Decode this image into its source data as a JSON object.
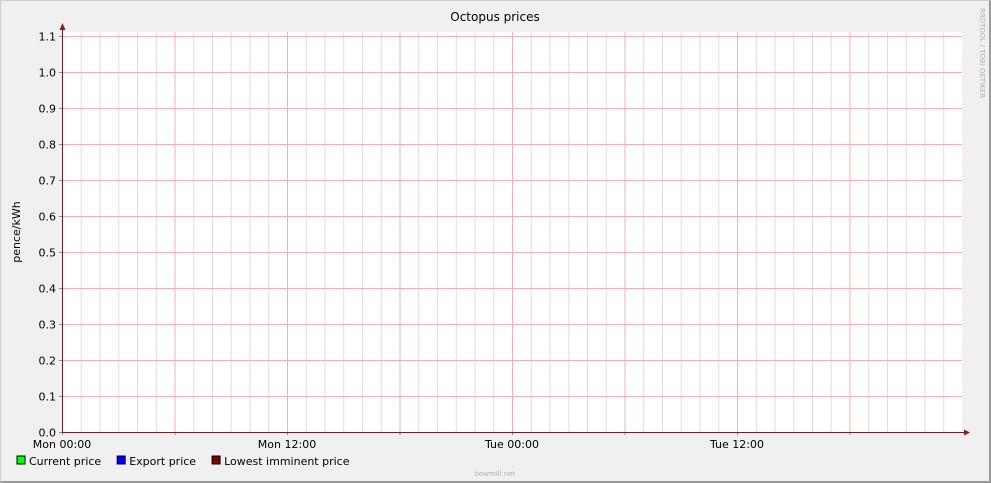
{
  "chart_data": {
    "type": "line",
    "title": "Octopus prices",
    "ylabel": "pence/kWh",
    "xlabel": "",
    "ylim": [
      0.0,
      1.1
    ],
    "yticks": [
      "0.0",
      "0.1",
      "0.2",
      "0.3",
      "0.4",
      "0.5",
      "0.6",
      "0.7",
      "0.8",
      "0.9",
      "1.0",
      "1.1"
    ],
    "x_range_hours": [
      0,
      48
    ],
    "xticks": [
      {
        "hour": 0,
        "label": "Mon 00:00"
      },
      {
        "hour": 12,
        "label": "Mon 12:00"
      },
      {
        "hour": 24,
        "label": "Tue 00:00"
      },
      {
        "hour": 36,
        "label": "Tue 12:00"
      }
    ],
    "grid": true,
    "legend_placement": "bottom-left",
    "series": [
      {
        "name": "Current price",
        "color": "#00ff00",
        "values": []
      },
      {
        "name": "Export price",
        "color": "#0000ff",
        "values": []
      },
      {
        "name": "Lowest imminent price",
        "color": "#800000",
        "values": []
      }
    ],
    "watermark": "RRDTOOL / TOBI OETIKER",
    "footer": "bowmill.net"
  }
}
